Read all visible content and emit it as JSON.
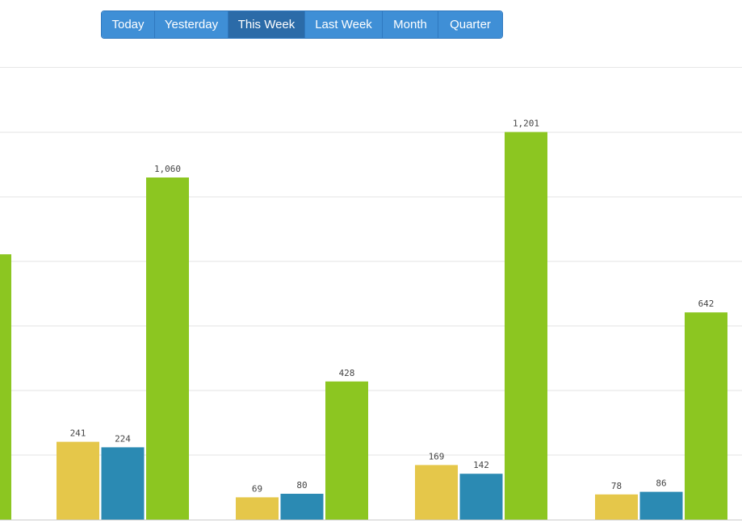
{
  "toolbar": {
    "buttons": [
      {
        "label": "Today",
        "active": false
      },
      {
        "label": "Yesterday",
        "active": false
      },
      {
        "label": "This Week",
        "active": true
      },
      {
        "label": "Last Week",
        "active": false
      },
      {
        "label": "Month",
        "active": false
      },
      {
        "label": "Quarter",
        "active": false
      }
    ]
  },
  "chart_data": {
    "type": "bar",
    "grid": true,
    "legend": "none",
    "ylim": [
      0,
      1500
    ],
    "series_colors": [
      "#e5c74a",
      "#2b8ab3",
      "#8cc621"
    ],
    "groups": [
      {
        "values": [
          null,
          null,
          822
        ],
        "labels": [
          null,
          null,
          null
        ]
      },
      {
        "values": [
          241,
          224,
          1060
        ],
        "labels": [
          "241",
          "224",
          "1,060"
        ]
      },
      {
        "values": [
          69,
          80,
          428
        ],
        "labels": [
          "69",
          "80",
          "428"
        ]
      },
      {
        "values": [
          169,
          142,
          1201
        ],
        "labels": [
          "169",
          "142",
          "1,201"
        ]
      },
      {
        "values": [
          78,
          86,
          642
        ],
        "labels": [
          "78",
          "86",
          "642"
        ]
      }
    ]
  }
}
